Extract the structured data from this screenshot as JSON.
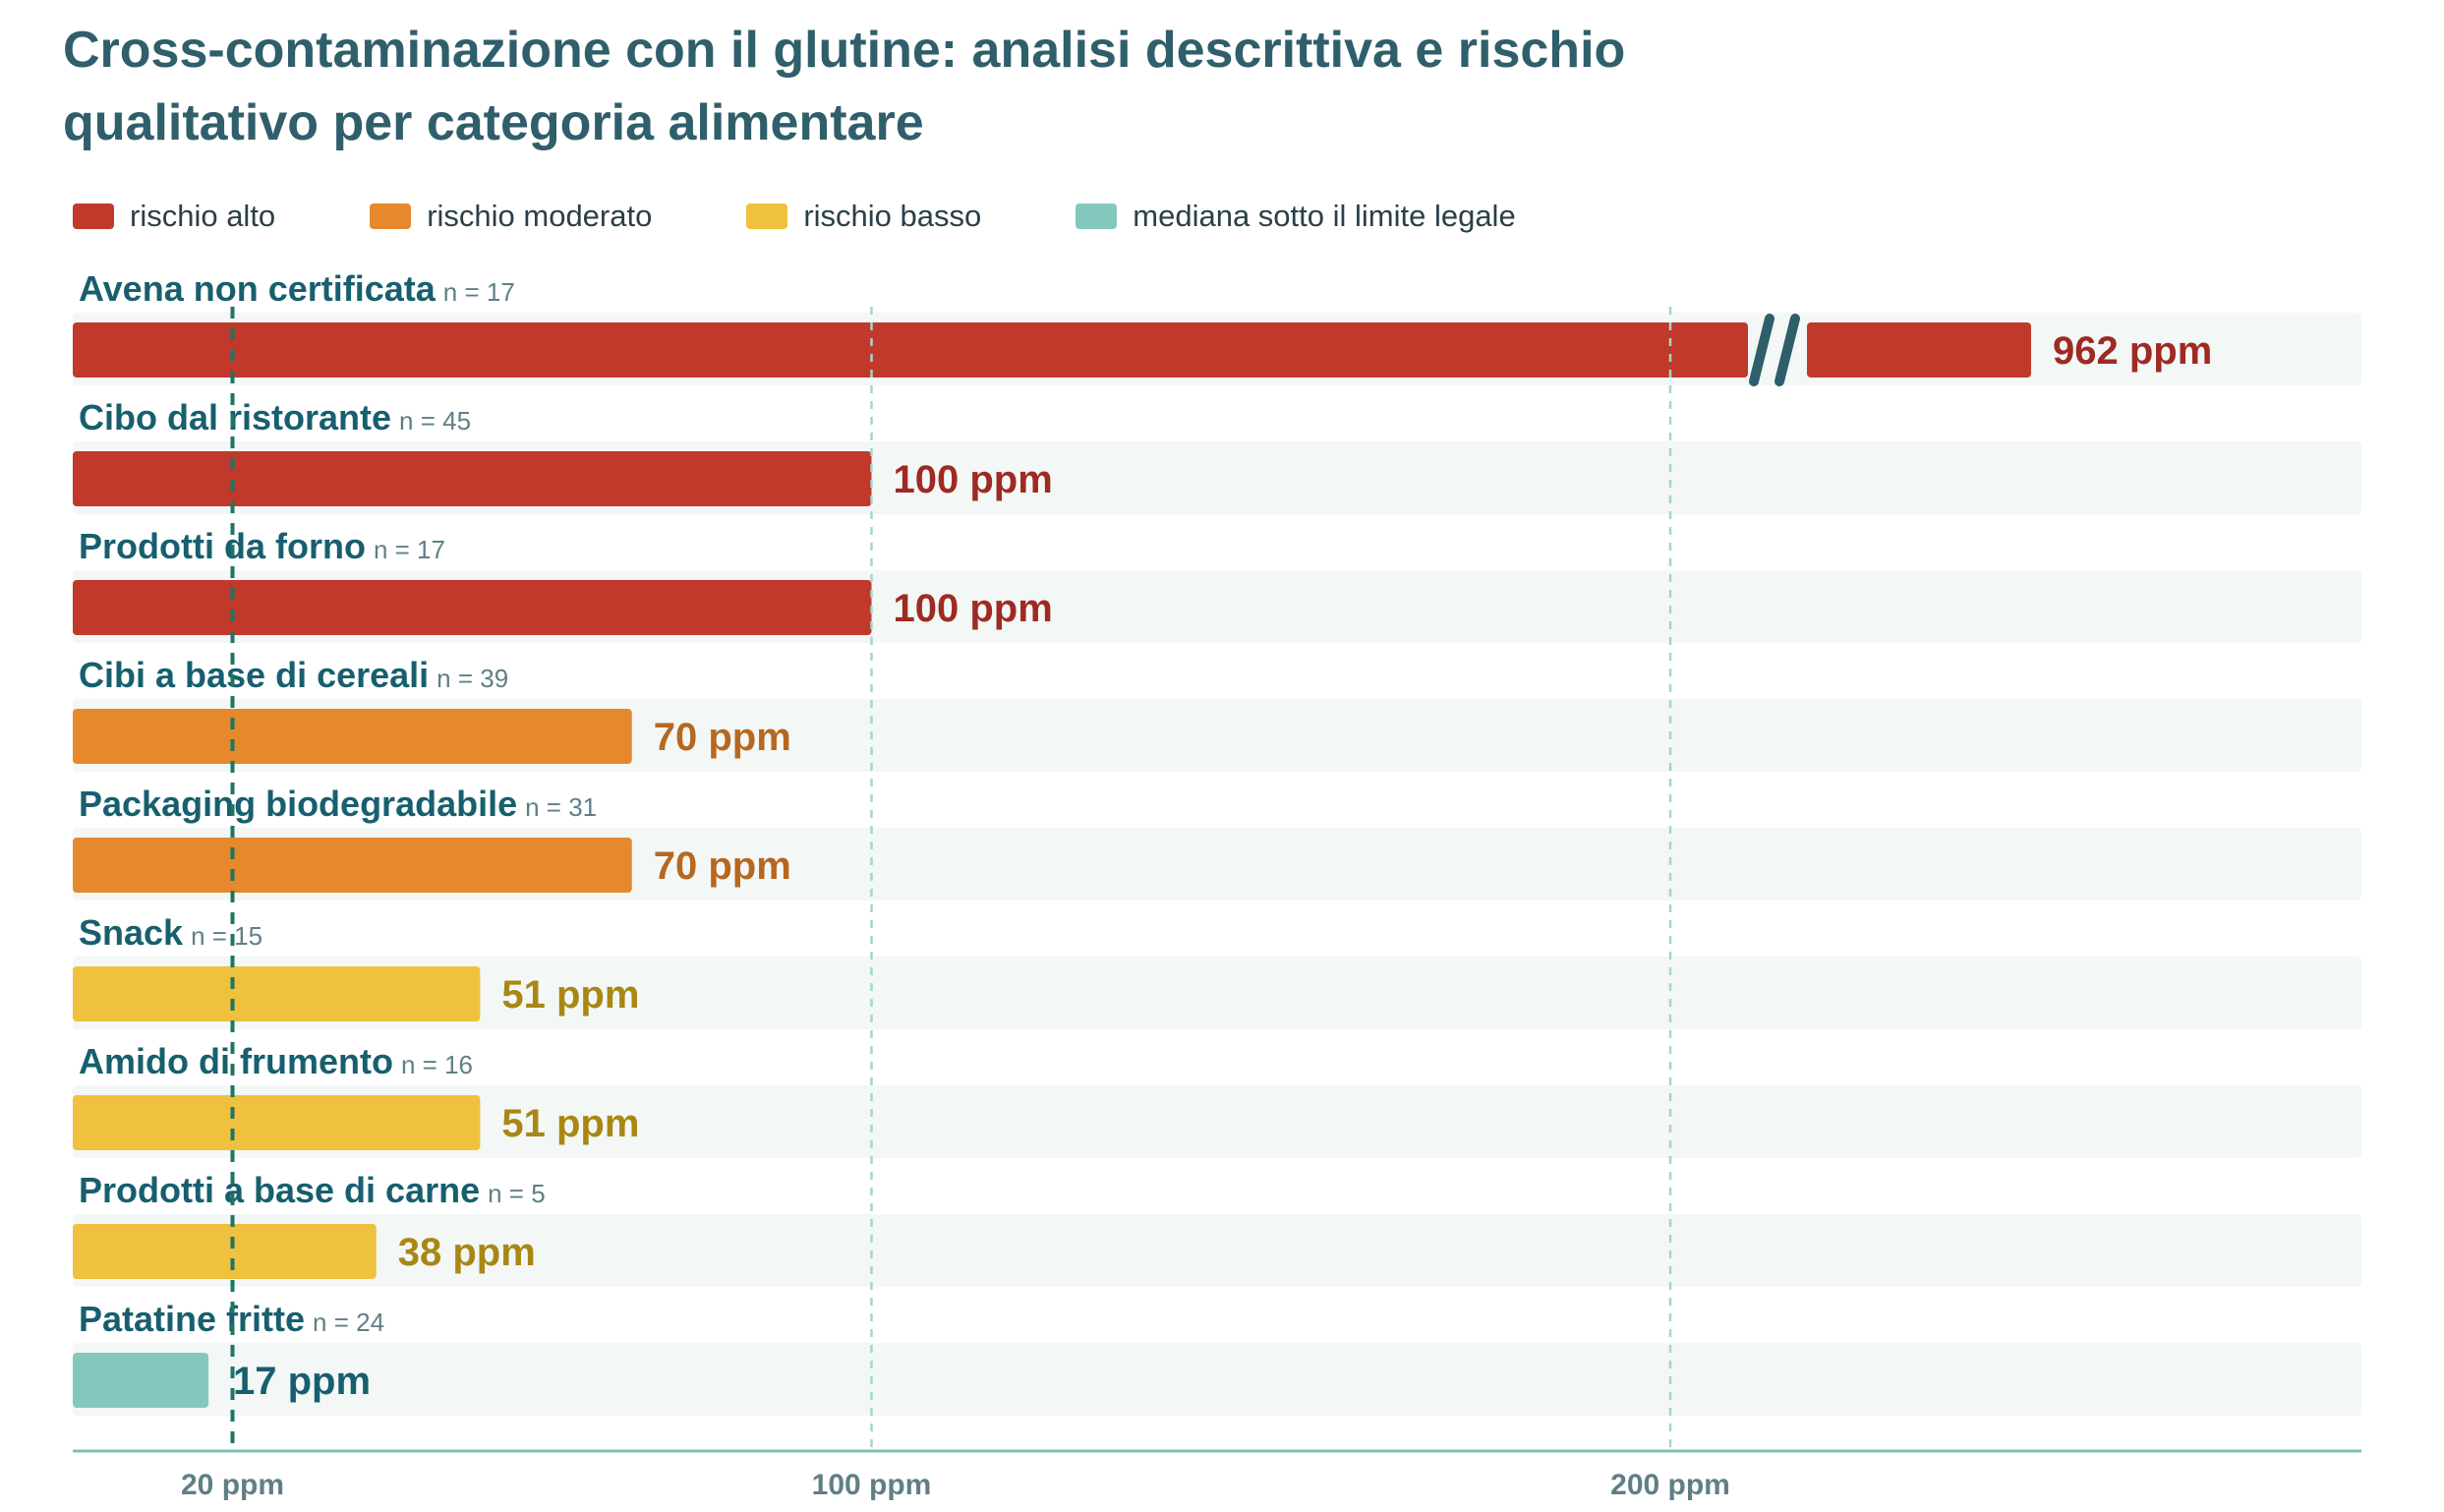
{
  "chart_data": {
    "type": "bar",
    "orientation": "horizontal",
    "title": "Cross-contaminazione con il glutine: analisi descrittiva e rischio qualitativo per categoria alimentare",
    "categories": [
      "Avena non certificata",
      "Cibo dal ristorante",
      "Prodotti da forno",
      "Cibi a base di cereali",
      "Packaging biodegradabile",
      "Snack",
      "Amido di frumento",
      "Prodotti a base di carne",
      "Patatine fritte"
    ],
    "n_labels": [
      "n = 17",
      "n = 45",
      "n = 17",
      "n = 39",
      "n = 31",
      "n = 15",
      "n = 16",
      "n = 5",
      "n = 24"
    ],
    "values": [
      962,
      100,
      100,
      70,
      70,
      51,
      51,
      38,
      17
    ],
    "value_labels": [
      "962 ppm",
      "100 ppm",
      "100 ppm",
      "70 ppm",
      "70 ppm",
      "51 ppm",
      "51 ppm",
      "38 ppm",
      "17 ppm"
    ],
    "risk": [
      "alto",
      "alto",
      "alto",
      "moderato",
      "moderato",
      "basso",
      "basso",
      "basso",
      "sotto"
    ],
    "xlim": [
      0,
      286
    ],
    "axis_break": true,
    "reference_line": 20,
    "ticks": [
      {
        "value": 20,
        "label": "20 ppm"
      },
      {
        "value": 100,
        "label": "100 ppm"
      },
      {
        "value": 200,
        "label": "200 ppm"
      }
    ],
    "legend": [
      {
        "key": "alto",
        "label": "rischio alto"
      },
      {
        "key": "moderato",
        "label": "rischio moderato"
      },
      {
        "key": "basso",
        "label": "rischio basso"
      },
      {
        "key": "sotto",
        "label": "mediana sotto il limite legale"
      }
    ],
    "legend_position": "top-left",
    "grid": true,
    "colors": {
      "alto": "#c0392b",
      "moderato": "#e5892c",
      "basso": "#efc13e",
      "sotto": "#84c8bd",
      "alto_text": "#9e2a22",
      "moderato_text": "#b8671f",
      "basso_text": "#a88714",
      "sotto_text": "#175f6e",
      "title": "#2f5f6b",
      "track": "#f3f7f6",
      "grid": "#a9d4c8",
      "reference": "#1d7566",
      "axis": "#7cc1b2"
    }
  }
}
